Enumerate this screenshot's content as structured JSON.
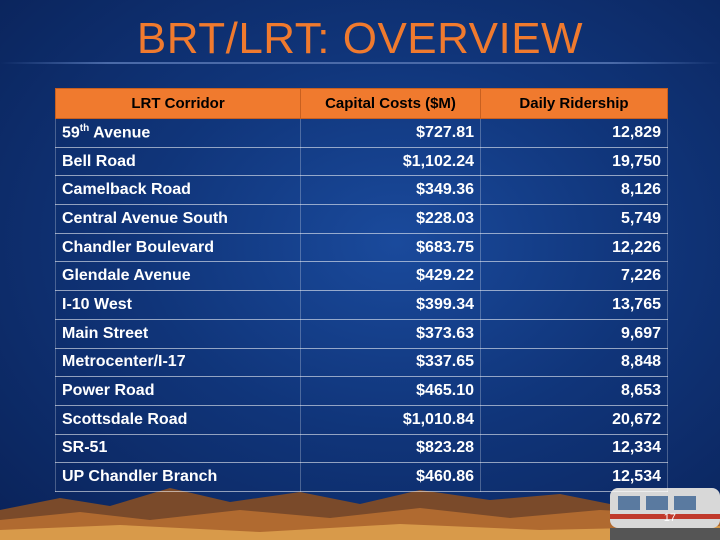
{
  "title": "BRT/LRT: OVERVIEW",
  "table": {
    "headers": [
      "LRT Corridor",
      "Capital Costs ($M)",
      "Daily Ridership"
    ],
    "rows": [
      {
        "corridor_prefix": "59",
        "corridor_sup": "th",
        "corridor_suffix": " Avenue",
        "cost": "$727.81",
        "ridership": "12,829"
      },
      {
        "corridor": "Bell Road",
        "cost": "$1,102.24",
        "ridership": "19,750"
      },
      {
        "corridor": "Camelback Road",
        "cost": "$349.36",
        "ridership": "8,126"
      },
      {
        "corridor": "Central Avenue South",
        "cost": "$228.03",
        "ridership": "5,749"
      },
      {
        "corridor": "Chandler Boulevard",
        "cost": "$683.75",
        "ridership": "12,226"
      },
      {
        "corridor": "Glendale Avenue",
        "cost": "$429.22",
        "ridership": "7,226"
      },
      {
        "corridor": "I-10 West",
        "cost": "$399.34",
        "ridership": "13,765"
      },
      {
        "corridor": "Main Street",
        "cost": "$373.63",
        "ridership": "9,697"
      },
      {
        "corridor": "Metrocenter/I-17",
        "cost": "$337.65",
        "ridership": "8,848"
      },
      {
        "corridor": "Power Road",
        "cost": "$465.10",
        "ridership": "8,653"
      },
      {
        "corridor": "Scottsdale Road",
        "cost": "$1,010.84",
        "ridership": "20,672"
      },
      {
        "corridor": "SR-51",
        "cost": "$823.28",
        "ridership": "12,334"
      },
      {
        "corridor": "UP Chandler Branch",
        "cost": "$460.86",
        "ridership": "12,534"
      }
    ]
  },
  "page_number": "17",
  "colors": {
    "accent": "#f07a2e",
    "background": "#10357a",
    "text": "#ffffff"
  }
}
